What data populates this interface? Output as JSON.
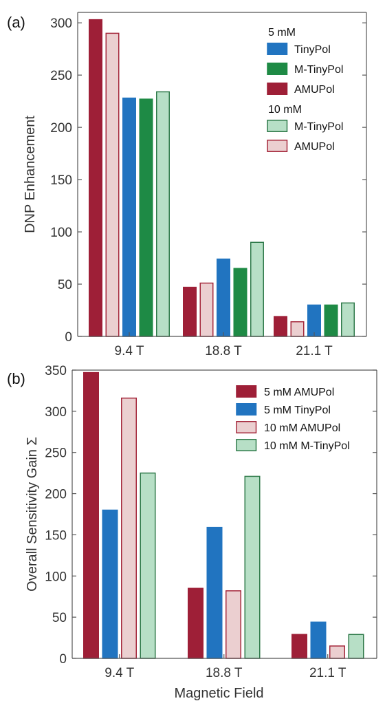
{
  "colors": {
    "amupol_5": "#9e1f37",
    "tinypol_5": "#2174c0",
    "mtinypol_5": "#1e8a45",
    "amupol_10_fill": "#ebcfd0",
    "amupol_10_stroke": "#a5283c",
    "mtinypol_10_fill": "#b7dfc6",
    "mtinypol_10_stroke": "#2f7a4a",
    "axis": "#555555"
  },
  "chart_data": [
    {
      "type": "bar",
      "panel_label": "(a)",
      "ylabel": "DNP Enhancement",
      "xlabel": "",
      "ylim": [
        0,
        310
      ],
      "yticks": [
        0,
        50,
        100,
        150,
        200,
        250,
        300
      ],
      "categories": [
        "9.4 T",
        "18.8 T",
        "21.1 T"
      ],
      "series": [
        {
          "name": "AMUPol",
          "group": "5 mM",
          "style": "amupol_5",
          "values": [
            303,
            47,
            19
          ]
        },
        {
          "name": "AMUPol",
          "group": "10 mM",
          "style": "amupol_10",
          "values": [
            290,
            51,
            14
          ]
        },
        {
          "name": "TinyPol",
          "group": "5 mM",
          "style": "tinypol_5",
          "values": [
            228,
            74,
            30
          ]
        },
        {
          "name": "M-TinyPol",
          "group": "5 mM",
          "style": "mtinypol_5",
          "values": [
            227,
            65,
            30
          ]
        },
        {
          "name": "M-TinyPol",
          "group": "10 mM",
          "style": "mtinypol_10",
          "values": [
            234,
            90,
            32
          ]
        }
      ],
      "legend": {
        "placement": "top-right",
        "groups": [
          {
            "title": "5 mM",
            "items": [
              {
                "label": "TinyPol",
                "style": "tinypol_5"
              },
              {
                "label": "M-TinyPol",
                "style": "mtinypol_5"
              },
              {
                "label": "AMUPol",
                "style": "amupol_5"
              }
            ]
          },
          {
            "title": "10 mM",
            "items": [
              {
                "label": "M-TinyPol",
                "style": "mtinypol_10"
              },
              {
                "label": "AMUPol",
                "style": "amupol_10"
              }
            ]
          }
        ]
      }
    },
    {
      "type": "bar",
      "panel_label": "(b)",
      "ylabel": "Overall Sensitivity Gain Σ",
      "xlabel": "Magnetic Field",
      "ylim": [
        0,
        350
      ],
      "yticks": [
        0,
        50,
        100,
        150,
        200,
        250,
        300,
        350
      ],
      "categories": [
        "9.4 T",
        "18.8 T",
        "21.1 T"
      ],
      "series": [
        {
          "name": "5 mM AMUPol",
          "style": "amupol_5",
          "values": [
            347,
            85,
            29
          ]
        },
        {
          "name": "5 mM TinyPol",
          "style": "tinypol_5",
          "values": [
            180,
            159,
            44
          ]
        },
        {
          "name": "10 mM AMUPol",
          "style": "amupol_10",
          "values": [
            316,
            82,
            15
          ]
        },
        {
          "name": "10 mM M-TinyPol",
          "style": "mtinypol_10",
          "values": [
            225,
            221,
            29
          ]
        }
      ],
      "legend": {
        "placement": "top-right",
        "items": [
          {
            "label": "5 mM AMUPol",
            "style": "amupol_5"
          },
          {
            "label": "5 mM TinyPol",
            "style": "tinypol_5"
          },
          {
            "label": "10 mM AMUPol",
            "style": "amupol_10"
          },
          {
            "label": "10 mM M-TinyPol",
            "style": "mtinypol_10"
          }
        ]
      }
    }
  ]
}
